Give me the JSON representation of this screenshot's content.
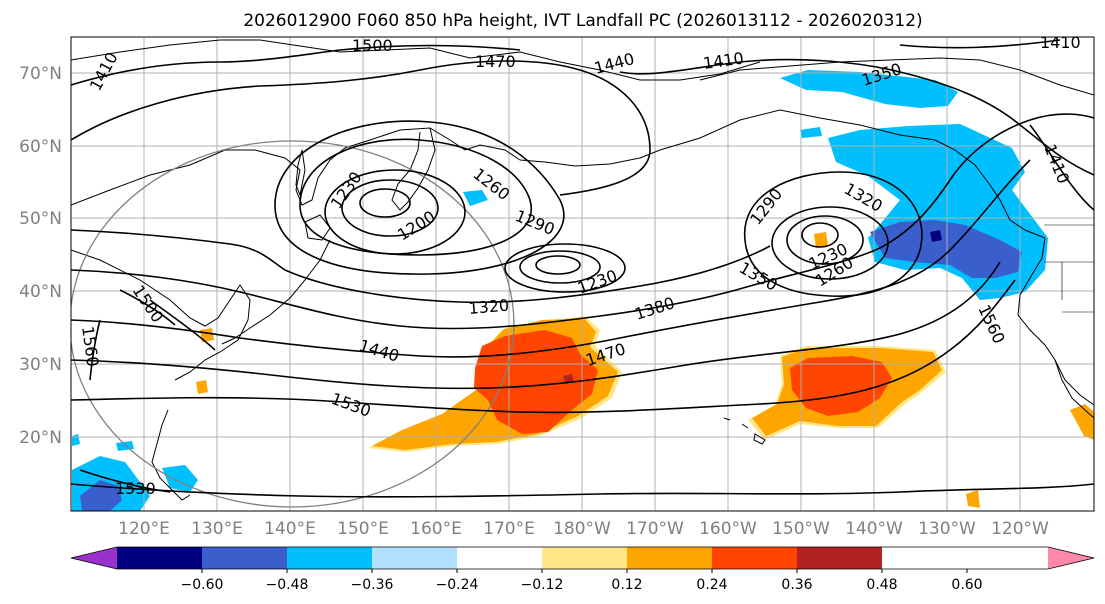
{
  "title": "2026012900 F060 850 hPa height, IVT Landfall PC (2026013112 - 2026020312)",
  "lat_labels": [
    "20°N",
    "30°N",
    "40°N",
    "50°N",
    "60°N",
    "70°N"
  ],
  "lon_labels": [
    "120°E",
    "130°E",
    "140°E",
    "150°E",
    "160°E",
    "170°E",
    "180°W",
    "170°W",
    "160°W",
    "150°W",
    "140°W",
    "130°W",
    "120°W"
  ],
  "contour_labels": [
    "1500",
    "1470",
    "1440",
    "1410",
    "1410",
    "1350",
    "1410",
    "1410",
    "1230",
    "1200",
    "1260",
    "1290",
    "1290",
    "1230",
    "1320",
    "1380",
    "1320",
    "1350",
    "1230",
    "1260",
    "1500",
    "1560",
    "1440",
    "1470",
    "1530",
    "1560",
    "1530"
  ],
  "colorbar": {
    "ticks": [
      "−0.60",
      "−0.48",
      "−0.36",
      "−0.24",
      "−0.12",
      "0.12",
      "0.24",
      "0.36",
      "0.48",
      "0.60"
    ],
    "colors": [
      "#9932cc",
      "#000080",
      "#3a5fcd",
      "#00bfff",
      "#b0e2ff",
      "#ffffff",
      "#ffe787",
      "#ffa500",
      "#ff4500",
      "#b22222",
      "#ff88aa"
    ]
  }
}
